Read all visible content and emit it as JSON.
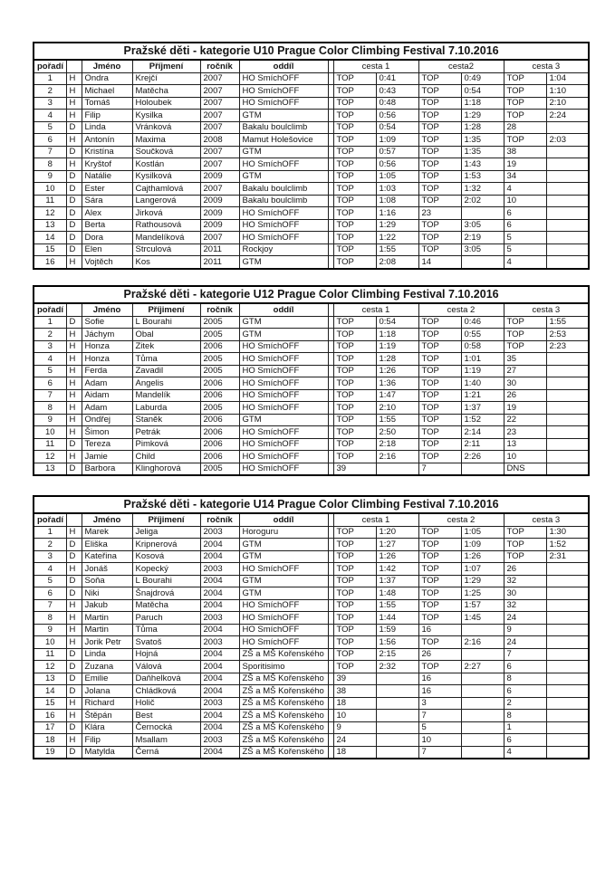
{
  "page": {
    "background": "#ffffff",
    "text_color": "#141414",
    "border_color": "#000000"
  },
  "tables": [
    {
      "title": "Pražské děti - kategorie U10  Prague Color Climbing Festival 7.10.2016",
      "columns": {
        "poradi": "pořadí",
        "sex": "",
        "jmeno": "Jméno",
        "prijmeni": "Příjmení",
        "rocnik": "ročník",
        "oddil": "oddíl",
        "cesta1": "cesta 1",
        "cesta2": "cesta2",
        "cesta3": "cesta 3"
      },
      "rows": [
        [
          "1",
          "H",
          "Ondra",
          "Krejčí",
          "2007",
          "HO SmíchOFF",
          "TOP",
          "0:41",
          "TOP",
          "0:49",
          "TOP",
          "1:04"
        ],
        [
          "2",
          "H",
          "Michael",
          "Matěcha",
          "2007",
          "HO SmíchOFF",
          "TOP",
          "0:43",
          "TOP",
          "0:54",
          "TOP",
          "1:10"
        ],
        [
          "3",
          "H",
          "Tomáš",
          "Holoubek",
          "2007",
          "HO SmíchOFF",
          "TOP",
          "0:48",
          "TOP",
          "1:18",
          "TOP",
          "2:10"
        ],
        [
          "4",
          "H",
          "Filip",
          "Kysilka",
          "2007",
          "GTM",
          "TOP",
          "0:56",
          "TOP",
          "1:29",
          "TOP",
          "2:24"
        ],
        [
          "5",
          "D",
          "Linda",
          "Vránková",
          "2007",
          "Bakalu boulclimb",
          "TOP",
          "0:54",
          "TOP",
          "1:28",
          "28",
          ""
        ],
        [
          "6",
          "H",
          "Antonín",
          "Maxima",
          "2008",
          "Mamut Holešovice",
          "TOP",
          "1:09",
          "TOP",
          "1:35",
          "TOP",
          "2:03"
        ],
        [
          "7",
          "D",
          "Kristína",
          "Součková",
          "2007",
          "GTM",
          "TOP",
          "0:57",
          "TOP",
          "1:35",
          "38",
          ""
        ],
        [
          "8",
          "H",
          "Kryštof",
          "Kostlán",
          "2007",
          "HO SmíchOFF",
          "TOP",
          "0:56",
          "TOP",
          "1:43",
          "19",
          ""
        ],
        [
          "9",
          "D",
          "Natálie",
          "Kysilková",
          "2009",
          "GTM",
          "TOP",
          "1:05",
          "TOP",
          "1:53",
          "34",
          ""
        ],
        [
          "10",
          "D",
          "Ester",
          "Cajthamlová",
          "2007",
          "Bakalu boulclimb",
          "TOP",
          "1:03",
          "TOP",
          "1:32",
          "4",
          ""
        ],
        [
          "11",
          "D",
          "Sára",
          "Langerová",
          "2009",
          "Bakalu boulclimb",
          "TOP",
          "1:08",
          "TOP",
          "2:02",
          "10",
          ""
        ],
        [
          "12",
          "D",
          "Alex",
          "Jirková",
          "2009",
          "HO SmíchOFF",
          "TOP",
          "1:16",
          "23",
          "",
          "6",
          ""
        ],
        [
          "13",
          "D",
          "Berta",
          "Rathousová",
          "2009",
          "HO SmíchOFF",
          "TOP",
          "1:29",
          "TOP",
          "3:05",
          "6",
          ""
        ],
        [
          "14",
          "D",
          "Dora",
          "Mandelíková",
          "2007",
          "HO SmíchOFF",
          "TOP",
          "1:22",
          "TOP",
          "2:19",
          "5",
          ""
        ],
        [
          "15",
          "D",
          "Elen",
          "Strculová",
          "2011",
          "Rockjoy",
          "TOP",
          "1:55",
          "TOP",
          "3:05",
          "5",
          ""
        ],
        [
          "16",
          "H",
          "Vojtěch",
          "Kos",
          "2011",
          "GTM",
          "TOP",
          "2:08",
          "14",
          "",
          "4",
          ""
        ]
      ]
    },
    {
      "title": "Pražské děti - kategorie U12  Prague Color Climbing Festival 7.10.2016",
      "columns": {
        "poradi": "pořadí",
        "sex": "",
        "jmeno": "Jméno",
        "prijmeni": "Příjimení",
        "rocnik": "ročník",
        "oddil": "oddíl",
        "cesta1": "cesta 1",
        "cesta2": "cesta 2",
        "cesta3": "cesta 3"
      },
      "rows": [
        [
          "1",
          "D",
          "Sofie",
          "L Bourahi",
          "2005",
          "GTM",
          "TOP",
          "0:54",
          "TOP",
          "0:46",
          "TOP",
          "1:55"
        ],
        [
          "2",
          "H",
          "Jáchym",
          "Obal",
          "2005",
          "GTM",
          "TOP",
          "1:18",
          "TOP",
          "0:55",
          "TOP",
          "2:53"
        ],
        [
          "3",
          "H",
          "Honza",
          "Zitek",
          "2006",
          "HO SmíchOFF",
          "TOP",
          "1:19",
          "TOP",
          "0:58",
          "TOP",
          "2:23"
        ],
        [
          "4",
          "H",
          "Honza",
          "Tůma",
          "2005",
          "HO SmíchOFF",
          "TOP",
          "1:28",
          "TOP",
          "1:01",
          "35",
          ""
        ],
        [
          "5",
          "H",
          "Ferda",
          "Zavadil",
          "2005",
          "HO SmíchOFF",
          "TOP",
          "1:26",
          "TOP",
          "1:19",
          "27",
          ""
        ],
        [
          "6",
          "H",
          "Adam",
          "Angelis",
          "2006",
          "HO SmíchOFF",
          "TOP",
          "1:36",
          "TOP",
          "1:40",
          "30",
          ""
        ],
        [
          "7",
          "H",
          "Aidam",
          "Mandelík",
          "2006",
          "HO SmíchOFF",
          "TOP",
          "1:47",
          "TOP",
          "1:21",
          "26",
          ""
        ],
        [
          "8",
          "H",
          "Adam",
          "Laburda",
          "2005",
          "HO SmíchOFF",
          "TOP",
          "2:10",
          "TOP",
          "1:37",
          "19",
          ""
        ],
        [
          "9",
          "H",
          "Ondřej",
          "Staněk",
          "2006",
          "GTM",
          "TOP",
          "1:55",
          "TOP",
          "1:52",
          "22",
          ""
        ],
        [
          "10",
          "H",
          "Šimon",
          "Petrák",
          "2006",
          "HO SmíchOFF",
          "TOP",
          "2:50",
          "TOP",
          "2:14",
          "23",
          ""
        ],
        [
          "11",
          "D",
          "Tereza",
          "Pimková",
          "2006",
          "HO SmíchOFF",
          "TOP",
          "2:18",
          "TOP",
          "2:11",
          "13",
          ""
        ],
        [
          "12",
          "H",
          "Jamie",
          "Child",
          "2006",
          "HO SmíchOFF",
          "TOP",
          "2:16",
          "TOP",
          "2:26",
          "10",
          ""
        ],
        [
          "13",
          "D",
          "Barbora",
          "Klinghorová",
          "2005",
          "HO SmíchOFF",
          "39",
          "",
          "7",
          "",
          "DNS",
          ""
        ]
      ]
    },
    {
      "title": "Pražské děti - kategorie U14  Prague Color Climbing Festival 7.10.2016",
      "columns": {
        "poradi": "pořadí",
        "sex": "",
        "jmeno": "Jméno",
        "prijmeni": "Příjimení",
        "rocnik": "ročník",
        "oddil": "oddíl",
        "cesta1": "cesta 1",
        "cesta2": "cesta 2",
        "cesta3": "cesta 3"
      },
      "rows": [
        [
          "1",
          "H",
          "Marek",
          "Jeliga",
          "2003",
          "Horoguru",
          "TOP",
          "1:20",
          "TOP",
          "1:05",
          "TOP",
          "1:30"
        ],
        [
          "2",
          "D",
          "Eliška",
          "Kripnerová",
          "2004",
          "GTM",
          "TOP",
          "1:27",
          "TOP",
          "1:09",
          "TOP",
          "1:52"
        ],
        [
          "3",
          "D",
          "Kateřina",
          "Kosová",
          "2004",
          "GTM",
          "TOP",
          "1:26",
          "TOP",
          "1:26",
          "TOP",
          "2:31"
        ],
        [
          "4",
          "H",
          "Jonáš",
          "Kopecký",
          "2003",
          "HO SmíchOFF",
          "TOP",
          "1:42",
          "TOP",
          "1:07",
          "26",
          ""
        ],
        [
          "5",
          "D",
          "Soňa",
          "L Bourahi",
          "2004",
          "GTM",
          "TOP",
          "1:37",
          "TOP",
          "1:29",
          "32",
          ""
        ],
        [
          "6",
          "D",
          "Niki",
          "Šnajdrová",
          "2004",
          "GTM",
          "TOP",
          "1:48",
          "TOP",
          "1:25",
          "30",
          ""
        ],
        [
          "7",
          "H",
          "Jakub",
          "Matěcha",
          "2004",
          "HO SmíchOFF",
          "TOP",
          "1:55",
          "TOP",
          "1:57",
          "32",
          ""
        ],
        [
          "8",
          "H",
          "Martin",
          "Paruch",
          "2003",
          "HO SmíchOFF",
          "TOP",
          "1:44",
          "TOP",
          "1:45",
          "24",
          ""
        ],
        [
          "9",
          "H",
          "Martin",
          "Tůma",
          "2004",
          "HO SmíchOFF",
          "TOP",
          "1:59",
          "16",
          "",
          "9",
          ""
        ],
        [
          "10",
          "H",
          "Jorik Petr",
          "Svatoš",
          "2003",
          "HO SmíchOFF",
          "TOP",
          "1:56",
          "TOP",
          "2:16",
          "24",
          ""
        ],
        [
          "11",
          "D",
          "Linda",
          "Hojná",
          "2004",
          "ZŠ a MŠ Kořenského",
          "TOP",
          "2:15",
          "26",
          "",
          "7",
          ""
        ],
        [
          "12",
          "D",
          "Zuzana",
          "Válová",
          "2004",
          "Sporitisimo",
          "TOP",
          "2:32",
          "TOP",
          "2:27",
          "6",
          ""
        ],
        [
          "13",
          "D",
          "Emilie",
          "Daňhelková",
          "2004",
          "ZŠ a MŠ Kořenského",
          "39",
          "",
          "16",
          "",
          "8",
          ""
        ],
        [
          "14",
          "D",
          "Jolana",
          "Chládková",
          "2004",
          "ZŠ a MŠ Kořenského",
          "38",
          "",
          "16",
          "",
          "6",
          ""
        ],
        [
          "15",
          "H",
          "Richard",
          "Holič",
          "2003",
          "ZŠ a MŠ Kořenského",
          "18",
          "",
          "3",
          "",
          "2",
          ""
        ],
        [
          "16",
          "H",
          "Štěpán",
          "Best",
          "2004",
          "ZŠ a MŠ Kořenského",
          "10",
          "",
          "7",
          "",
          "8",
          ""
        ],
        [
          "17",
          "D",
          "Klára",
          "Černocká",
          "2004",
          "ZŠ a MŠ Kořenského",
          "9",
          "",
          "5",
          "",
          "1",
          ""
        ],
        [
          "18",
          "H",
          "Filip",
          "Msallam",
          "2003",
          "ZŠ a MŠ Kořenského",
          "24",
          "",
          "10",
          "",
          "6",
          ""
        ],
        [
          "19",
          "D",
          "Matylda",
          "Černá",
          "2004",
          "ZŠ a MŠ Kořenského",
          "18",
          "",
          "7",
          "",
          "4",
          ""
        ]
      ]
    }
  ]
}
